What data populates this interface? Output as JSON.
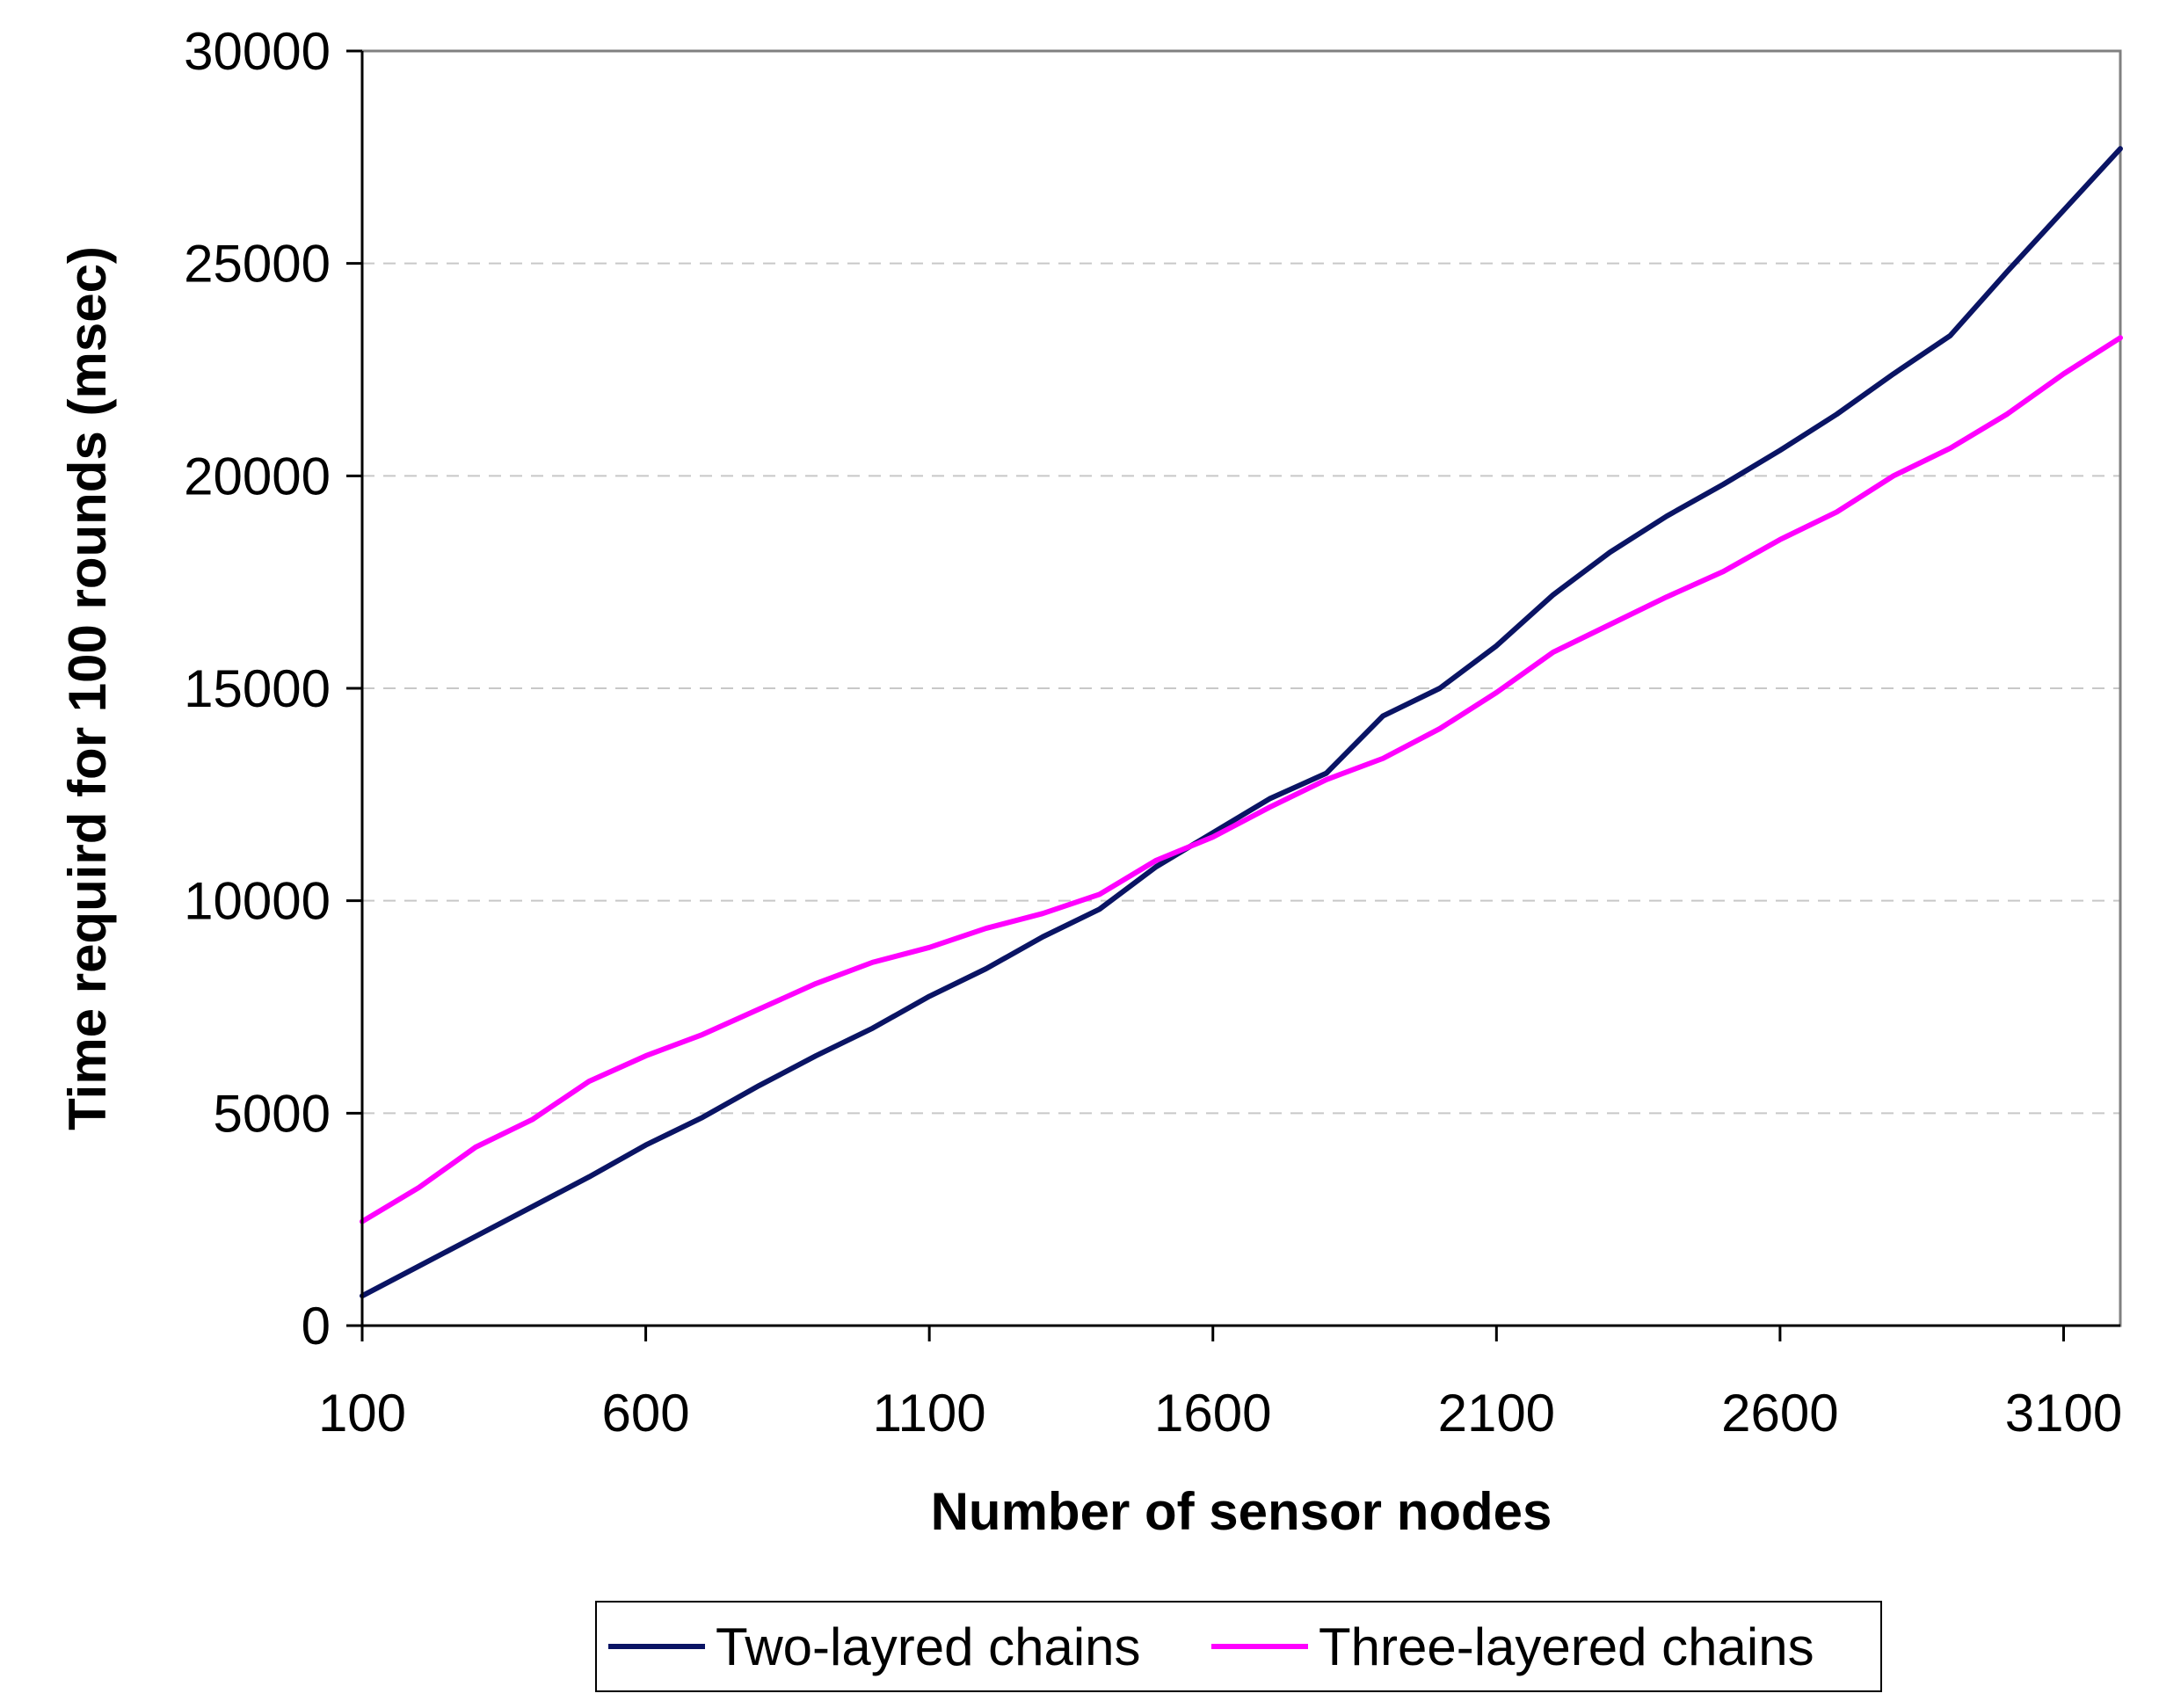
{
  "chart_data": {
    "type": "line",
    "title": "",
    "xlabel": "Number of sensor nodes",
    "ylabel": "Time requird for 100 rounds (msec)",
    "x": [
      100,
      200,
      300,
      400,
      500,
      600,
      700,
      800,
      900,
      1000,
      1100,
      1200,
      1300,
      1400,
      1500,
      1600,
      1700,
      1800,
      1900,
      2000,
      2100,
      2200,
      2300,
      2400,
      2500,
      2600,
      2700,
      2800,
      2900,
      3000,
      3100,
      3200
    ],
    "xlim": [
      100,
      3200
    ],
    "ylim": [
      0,
      30000
    ],
    "x_ticks": [
      "100",
      "600",
      "1100",
      "1600",
      "2100",
      "2600",
      "3100"
    ],
    "x_tick_values": [
      100,
      600,
      1100,
      1600,
      2100,
      2600,
      3100
    ],
    "y_ticks": [
      "0",
      "5000",
      "10000",
      "15000",
      "20000",
      "25000",
      "30000"
    ],
    "y_tick_values": [
      0,
      5000,
      10000,
      15000,
      20000,
      25000,
      30000
    ],
    "grid": "horizontal dashed",
    "legend_position": "bottom",
    "series": [
      {
        "name": "Two-layred chains",
        "color": "#0a1464",
        "values": [
          700,
          1400,
          2100,
          2800,
          3500,
          4250,
          4900,
          5650,
          6350,
          7000,
          7750,
          8400,
          9150,
          9800,
          10800,
          11600,
          12400,
          13000,
          14350,
          15000,
          16000,
          17200,
          18200,
          19050,
          19800,
          20600,
          21450,
          22400,
          23300,
          24800,
          26250,
          27700
        ]
      },
      {
        "name": "Three-layered chains",
        "color": "#ff00ff",
        "values": [
          2450,
          3250,
          4200,
          4850,
          5750,
          6350,
          6850,
          7450,
          8050,
          8550,
          8900,
          9350,
          9700,
          10150,
          10950,
          11500,
          12200,
          12850,
          13350,
          14050,
          14900,
          15850,
          16500,
          17150,
          17750,
          18500,
          19150,
          20000,
          20650,
          21450,
          22400,
          23250
        ]
      }
    ]
  }
}
